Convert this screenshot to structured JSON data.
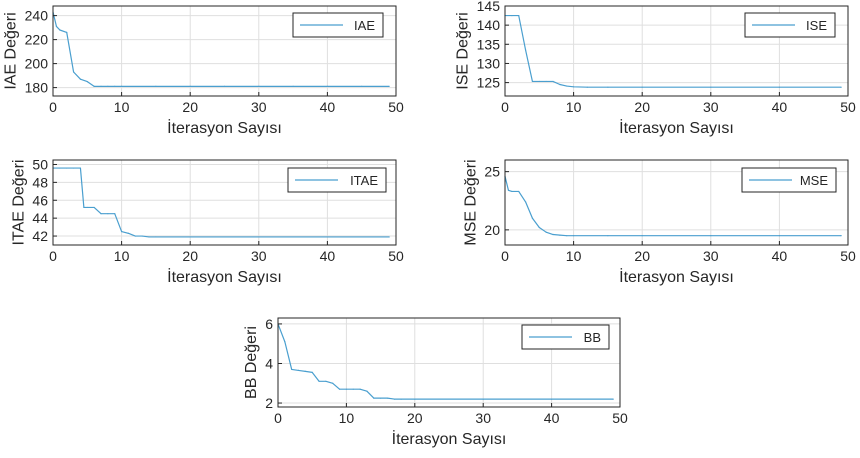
{
  "chart_data": [
    {
      "type": "line",
      "id": "iae",
      "xlabel": "İterasyon Sayısı",
      "ylabel": "IAE Değeri",
      "xlim": [
        0,
        50
      ],
      "ylim": [
        173,
        248
      ],
      "xticks": [
        0,
        10,
        20,
        30,
        40,
        50
      ],
      "yticks": [
        180,
        200,
        220,
        240
      ],
      "grid": true,
      "legend_position": "top-right",
      "series": [
        {
          "name": "IAE",
          "x": [
            0,
            0.5,
            1,
            2,
            3,
            4,
            5,
            6,
            7,
            8,
            9,
            10,
            15,
            20,
            25,
            30,
            35,
            40,
            45,
            49
          ],
          "y": [
            243,
            231,
            228,
            226,
            193,
            187,
            185,
            181,
            181,
            181,
            181,
            181,
            181,
            181,
            181,
            181,
            181,
            181,
            181,
            181
          ]
        }
      ]
    },
    {
      "type": "line",
      "id": "ise",
      "xlabel": "İterasyon Sayısı",
      "ylabel": "ISE Değeri",
      "xlim": [
        0,
        50
      ],
      "ylim": [
        121.5,
        145
      ],
      "xticks": [
        0,
        10,
        20,
        30,
        40,
        50
      ],
      "yticks": [
        125,
        130,
        135,
        140,
        145
      ],
      "grid": true,
      "legend_position": "top-right",
      "series": [
        {
          "name": "ISE",
          "x": [
            0,
            1,
            2,
            3,
            4,
            5,
            6,
            7,
            8,
            9,
            10,
            12,
            15,
            20,
            30,
            40,
            49
          ],
          "y": [
            142.5,
            142.5,
            142.5,
            133.5,
            125.3,
            125.3,
            125.3,
            125.3,
            124.5,
            124.1,
            123.9,
            123.8,
            123.8,
            123.8,
            123.8,
            123.8,
            123.8
          ]
        }
      ]
    },
    {
      "type": "line",
      "id": "itae",
      "xlabel": "İterasyon Sayısı",
      "ylabel": "ITAE Değeri",
      "xlim": [
        0,
        50
      ],
      "ylim": [
        41,
        50.5
      ],
      "xticks": [
        0,
        10,
        20,
        30,
        40,
        50
      ],
      "yticks": [
        42,
        44,
        46,
        48,
        50
      ],
      "grid": true,
      "legend_position": "top-right",
      "series": [
        {
          "name": "ITAE",
          "x": [
            0,
            1,
            2,
            3,
            4,
            4.5,
            5,
            6,
            7,
            8,
            9,
            10,
            11,
            12,
            13,
            14,
            15,
            20,
            30,
            40,
            49
          ],
          "y": [
            49.6,
            49.6,
            49.6,
            49.6,
            49.6,
            45.2,
            45.2,
            45.2,
            44.5,
            44.5,
            44.5,
            42.5,
            42.3,
            42.0,
            42.0,
            41.9,
            41.9,
            41.9,
            41.9,
            41.9,
            41.9
          ]
        }
      ]
    },
    {
      "type": "line",
      "id": "mse",
      "xlabel": "İterasyon Sayısı",
      "ylabel": "MSE Değeri",
      "xlim": [
        0,
        50
      ],
      "ylim": [
        18.7,
        26
      ],
      "xticks": [
        0,
        10,
        20,
        30,
        40,
        50
      ],
      "yticks": [
        20,
        25
      ],
      "grid": true,
      "legend_position": "top-right",
      "series": [
        {
          "name": "MSE",
          "x": [
            0,
            0.5,
            1,
            2,
            3,
            4,
            5,
            6,
            7,
            8,
            9,
            10,
            15,
            20,
            30,
            40,
            49
          ],
          "y": [
            24.6,
            23.4,
            23.3,
            23.3,
            22.4,
            21.0,
            20.2,
            19.8,
            19.6,
            19.55,
            19.5,
            19.5,
            19.5,
            19.5,
            19.5,
            19.5,
            19.5
          ]
        }
      ]
    },
    {
      "type": "line",
      "id": "bb",
      "xlabel": "İterasyon Sayısı",
      "ylabel": "BB Değeri",
      "xlim": [
        0,
        50
      ],
      "ylim": [
        1.8,
        6.3
      ],
      "xticks": [
        0,
        10,
        20,
        30,
        40,
        50
      ],
      "yticks": [
        2,
        4,
        6
      ],
      "grid": true,
      "legend_position": "top-right",
      "series": [
        {
          "name": "BB",
          "x": [
            0,
            1,
            2,
            3,
            4,
            5,
            6,
            7,
            8,
            9,
            10,
            11,
            12,
            13,
            14,
            15,
            16,
            17,
            18,
            20,
            30,
            40,
            49
          ],
          "y": [
            6.0,
            5.1,
            3.7,
            3.65,
            3.6,
            3.55,
            3.1,
            3.1,
            3.0,
            2.7,
            2.7,
            2.7,
            2.7,
            2.6,
            2.25,
            2.25,
            2.25,
            2.2,
            2.2,
            2.2,
            2.2,
            2.2,
            2.2
          ]
        }
      ]
    }
  ],
  "colors": {
    "series_line": "#4a9fcf",
    "axis": "#262626",
    "grid": "#dfdfdf"
  }
}
